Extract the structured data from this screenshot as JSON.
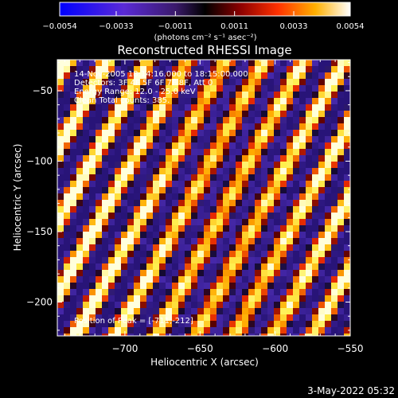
{
  "chart_data": {
    "type": "heatmap",
    "title": "Reconstructed RHESSI Image",
    "xlabel": "Heliocentric X (arcsec)",
    "ylabel": "Heliocentric Y (arcsec)",
    "xlim": [
      -745,
      -550
    ],
    "ylim": [
      -224,
      -28
    ],
    "xticks": [
      -700,
      -650,
      -600,
      -550
    ],
    "xtick_labels": [
      "−700",
      "−650",
      "−600",
      "−550"
    ],
    "yticks": [
      -50,
      -100,
      -150,
      -200
    ],
    "ytick_labels": [
      "−50",
      "−100",
      "−150",
      "−200"
    ],
    "colorbar": {
      "min": -0.0054,
      "max": 0.0054,
      "ticks": [
        -0.0054,
        -0.0033,
        -0.0011,
        0.0011,
        0.0033,
        0.0054
      ],
      "tick_labels": [
        "−0.0054",
        "−0.0033",
        "−0.0011",
        "0.0011",
        "0.0033",
        "0.0054"
      ],
      "unit_label": "(photons cm⁻² s⁻¹ asec⁻²)"
    },
    "annotations": [
      "14-Nov-2005 18:14:16.000 to 18:15:00.000",
      "Detectors: 3F 4F 5F 6F 7F 8F, Att 0",
      "Energy Range: 12.0 - 25.0 keV",
      "Clean     Total counts: 385."
    ],
    "peak_label": "Position of Peak = [-711,-212]",
    "peak": [
      -711,
      -212
    ]
  },
  "footer_date": "3-May-2022 05:32"
}
